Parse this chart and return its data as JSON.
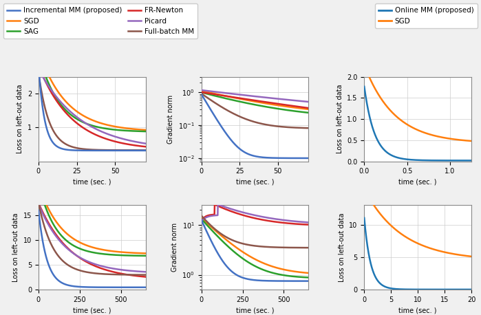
{
  "legend1": {
    "entries": [
      {
        "label": "Incremental MM (proposed)",
        "color": "#4472c4",
        "lw": 1.8
      },
      {
        "label": "SGD",
        "color": "#ff7f0e",
        "lw": 1.8
      },
      {
        "label": "SAG",
        "color": "#2ca02c",
        "lw": 1.8
      },
      {
        "label": "FR-Newton",
        "color": "#d62728",
        "lw": 1.8
      },
      {
        "label": "Picard",
        "color": "#9467bd",
        "lw": 1.8
      },
      {
        "label": "Full-batch MM",
        "color": "#8c564b",
        "lw": 1.8
      }
    ]
  },
  "legend2": {
    "entries": [
      {
        "label": "Online MM (proposed)",
        "color": "#1f77b4",
        "lw": 2.0
      },
      {
        "label": "SGD",
        "color": "#ff7f0e",
        "lw": 2.0
      }
    ]
  },
  "colors": {
    "incremental_mm": "#4472c4",
    "sgd": "#ff7f0e",
    "sag": "#2ca02c",
    "fr_newton": "#d62728",
    "picard": "#9467bd",
    "fullbatch_mm": "#8c564b",
    "online_mm": "#1f77b4"
  },
  "figure_bg": "#f0f0f0",
  "axes_bg": "#ffffff",
  "grid_color": "#cccccc",
  "label_fontsize": 7,
  "tick_fontsize": 7,
  "legend_fontsize": 7.5
}
